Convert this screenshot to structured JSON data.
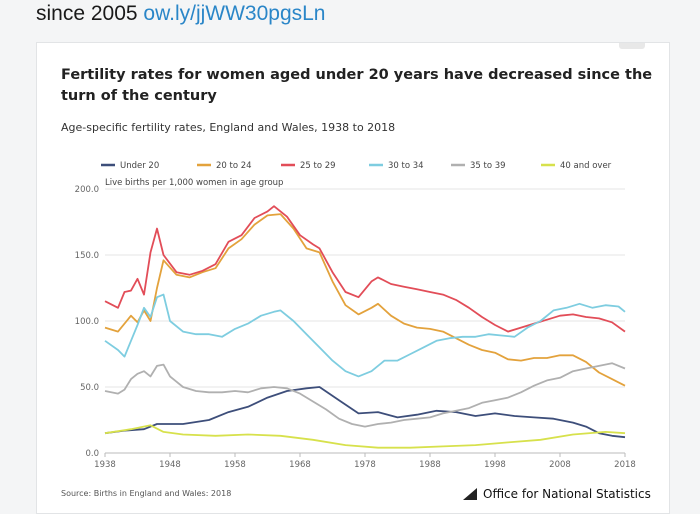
{
  "tweet": {
    "text_prefix": "since 2005 ",
    "link": "ow.ly/jjWW30pgsLn"
  },
  "card": {
    "title": "Fertility rates for women aged under 20 years have decreased since the turn of the century",
    "subtitle": "Age-specific fertility rates, England and Wales, 1938 to 2018",
    "source": "Source: Births in England and Wales: 2018",
    "logo_text": "Office for National Statistics"
  },
  "chart_data": {
    "type": "line",
    "title": "Fertility rates for women aged under 20 years have decreased since the turn of the century",
    "subtitle": "Age-specific fertility rates, England and Wales, 1938 to 2018",
    "ylabel": "Live births per 1,000 women in age group",
    "xlabel": "",
    "xlim": [
      1938,
      2018
    ],
    "ylim": [
      0,
      200
    ],
    "xticks": [
      1938,
      1948,
      1958,
      1968,
      1978,
      1988,
      1998,
      2008,
      2018
    ],
    "yticks": [
      0,
      50,
      100,
      150,
      200
    ],
    "ytick_labels": [
      "0.0",
      "50.0",
      "100.0",
      "150.0",
      "200.0"
    ],
    "grid": "horizontal",
    "legend_position": "top",
    "series": [
      {
        "name": "Under 20",
        "color": "#3d4e7a",
        "points": [
          [
            1938,
            15
          ],
          [
            1941,
            17
          ],
          [
            1944,
            18
          ],
          [
            1946,
            22
          ],
          [
            1950,
            22
          ],
          [
            1954,
            25
          ],
          [
            1957,
            31
          ],
          [
            1960,
            35
          ],
          [
            1963,
            42
          ],
          [
            1966,
            47
          ],
          [
            1969,
            49
          ],
          [
            1971,
            50
          ],
          [
            1974,
            40
          ],
          [
            1977,
            30
          ],
          [
            1980,
            31
          ],
          [
            1983,
            27
          ],
          [
            1986,
            29
          ],
          [
            1989,
            32
          ],
          [
            1992,
            31
          ],
          [
            1995,
            28
          ],
          [
            1998,
            30
          ],
          [
            2001,
            28
          ],
          [
            2004,
            27
          ],
          [
            2007,
            26
          ],
          [
            2010,
            23
          ],
          [
            2012,
            20
          ],
          [
            2014,
            15
          ],
          [
            2016,
            13
          ],
          [
            2018,
            12
          ]
        ]
      },
      {
        "name": "20 to 24",
        "color": "#e3a23c",
        "points": [
          [
            1938,
            95
          ],
          [
            1940,
            92
          ],
          [
            1942,
            104
          ],
          [
            1943,
            99
          ],
          [
            1944,
            108
          ],
          [
            1945,
            100
          ],
          [
            1946,
            125
          ],
          [
            1947,
            146
          ],
          [
            1949,
            135
          ],
          [
            1951,
            133
          ],
          [
            1953,
            137
          ],
          [
            1955,
            140
          ],
          [
            1957,
            155
          ],
          [
            1959,
            162
          ],
          [
            1961,
            173
          ],
          [
            1963,
            180
          ],
          [
            1965,
            181
          ],
          [
            1967,
            170
          ],
          [
            1969,
            155
          ],
          [
            1971,
            152
          ],
          [
            1973,
            130
          ],
          [
            1975,
            112
          ],
          [
            1977,
            105
          ],
          [
            1979,
            110
          ],
          [
            1980,
            113
          ],
          [
            1982,
            104
          ],
          [
            1984,
            98
          ],
          [
            1986,
            95
          ],
          [
            1988,
            94
          ],
          [
            1990,
            92
          ],
          [
            1992,
            87
          ],
          [
            1994,
            82
          ],
          [
            1996,
            78
          ],
          [
            1998,
            76
          ],
          [
            2000,
            71
          ],
          [
            2002,
            70
          ],
          [
            2004,
            72
          ],
          [
            2006,
            72
          ],
          [
            2008,
            74
          ],
          [
            2010,
            74
          ],
          [
            2012,
            69
          ],
          [
            2014,
            61
          ],
          [
            2016,
            56
          ],
          [
            2018,
            51
          ]
        ]
      },
      {
        "name": "25 to 29",
        "color": "#e24d58",
        "points": [
          [
            1938,
            115
          ],
          [
            1940,
            110
          ],
          [
            1941,
            122
          ],
          [
            1942,
            123
          ],
          [
            1943,
            132
          ],
          [
            1944,
            120
          ],
          [
            1945,
            152
          ],
          [
            1946,
            170
          ],
          [
            1947,
            150
          ],
          [
            1949,
            137
          ],
          [
            1951,
            135
          ],
          [
            1953,
            138
          ],
          [
            1955,
            143
          ],
          [
            1957,
            160
          ],
          [
            1959,
            165
          ],
          [
            1961,
            178
          ],
          [
            1963,
            183
          ],
          [
            1964,
            187
          ],
          [
            1966,
            179
          ],
          [
            1968,
            165
          ],
          [
            1970,
            158
          ],
          [
            1971,
            155
          ],
          [
            1973,
            137
          ],
          [
            1975,
            122
          ],
          [
            1977,
            118
          ],
          [
            1979,
            130
          ],
          [
            1980,
            133
          ],
          [
            1982,
            128
          ],
          [
            1984,
            126
          ],
          [
            1986,
            124
          ],
          [
            1988,
            122
          ],
          [
            1990,
            120
          ],
          [
            1992,
            116
          ],
          [
            1994,
            110
          ],
          [
            1996,
            103
          ],
          [
            1998,
            97
          ],
          [
            2000,
            92
          ],
          [
            2002,
            95
          ],
          [
            2004,
            98
          ],
          [
            2006,
            101
          ],
          [
            2008,
            104
          ],
          [
            2010,
            105
          ],
          [
            2012,
            103
          ],
          [
            2014,
            102
          ],
          [
            2016,
            99
          ],
          [
            2018,
            92
          ]
        ]
      },
      {
        "name": "30 to 34",
        "color": "#7ecde0",
        "points": [
          [
            1938,
            85
          ],
          [
            1940,
            78
          ],
          [
            1941,
            73
          ],
          [
            1942,
            85
          ],
          [
            1943,
            97
          ],
          [
            1944,
            110
          ],
          [
            1945,
            103
          ],
          [
            1946,
            118
          ],
          [
            1947,
            120
          ],
          [
            1948,
            100
          ],
          [
            1950,
            92
          ],
          [
            1952,
            90
          ],
          [
            1954,
            90
          ],
          [
            1956,
            88
          ],
          [
            1958,
            94
          ],
          [
            1960,
            98
          ],
          [
            1962,
            104
          ],
          [
            1964,
            107
          ],
          [
            1965,
            108
          ],
          [
            1967,
            100
          ],
          [
            1969,
            90
          ],
          [
            1971,
            80
          ],
          [
            1973,
            70
          ],
          [
            1975,
            62
          ],
          [
            1977,
            58
          ],
          [
            1979,
            62
          ],
          [
            1981,
            70
          ],
          [
            1983,
            70
          ],
          [
            1985,
            75
          ],
          [
            1987,
            80
          ],
          [
            1989,
            85
          ],
          [
            1991,
            87
          ],
          [
            1993,
            88
          ],
          [
            1995,
            88
          ],
          [
            1997,
            90
          ],
          [
            1999,
            89
          ],
          [
            2001,
            88
          ],
          [
            2003,
            95
          ],
          [
            2005,
            100
          ],
          [
            2007,
            108
          ],
          [
            2009,
            110
          ],
          [
            2011,
            113
          ],
          [
            2013,
            110
          ],
          [
            2015,
            112
          ],
          [
            2017,
            111
          ],
          [
            2018,
            107
          ]
        ]
      },
      {
        "name": "35 to 39",
        "color": "#b0b0b0",
        "points": [
          [
            1938,
            47
          ],
          [
            1940,
            45
          ],
          [
            1941,
            48
          ],
          [
            1942,
            56
          ],
          [
            1943,
            60
          ],
          [
            1944,
            62
          ],
          [
            1945,
            58
          ],
          [
            1946,
            66
          ],
          [
            1947,
            67
          ],
          [
            1948,
            58
          ],
          [
            1950,
            50
          ],
          [
            1952,
            47
          ],
          [
            1954,
            46
          ],
          [
            1956,
            46
          ],
          [
            1958,
            47
          ],
          [
            1960,
            46
          ],
          [
            1962,
            49
          ],
          [
            1964,
            50
          ],
          [
            1966,
            49
          ],
          [
            1968,
            45
          ],
          [
            1970,
            39
          ],
          [
            1972,
            33
          ],
          [
            1974,
            26
          ],
          [
            1976,
            22
          ],
          [
            1978,
            20
          ],
          [
            1980,
            22
          ],
          [
            1982,
            23
          ],
          [
            1984,
            25
          ],
          [
            1986,
            26
          ],
          [
            1988,
            27
          ],
          [
            1990,
            30
          ],
          [
            1992,
            32
          ],
          [
            1994,
            34
          ],
          [
            1996,
            38
          ],
          [
            1998,
            40
          ],
          [
            2000,
            42
          ],
          [
            2002,
            46
          ],
          [
            2004,
            51
          ],
          [
            2006,
            55
          ],
          [
            2008,
            57
          ],
          [
            2010,
            62
          ],
          [
            2012,
            64
          ],
          [
            2014,
            66
          ],
          [
            2016,
            68
          ],
          [
            2018,
            64
          ]
        ]
      },
      {
        "name": "40 and over",
        "color": "#d7e14c",
        "points": [
          [
            1938,
            15
          ],
          [
            1942,
            18
          ],
          [
            1945,
            21
          ],
          [
            1947,
            16
          ],
          [
            1950,
            14
          ],
          [
            1955,
            13
          ],
          [
            1960,
            14
          ],
          [
            1965,
            13
          ],
          [
            1970,
            10
          ],
          [
            1975,
            6
          ],
          [
            1980,
            4
          ],
          [
            1985,
            4
          ],
          [
            1990,
            5
          ],
          [
            1995,
            6
          ],
          [
            2000,
            8
          ],
          [
            2005,
            10
          ],
          [
            2010,
            14
          ],
          [
            2015,
            16
          ],
          [
            2018,
            15
          ]
        ]
      }
    ]
  }
}
